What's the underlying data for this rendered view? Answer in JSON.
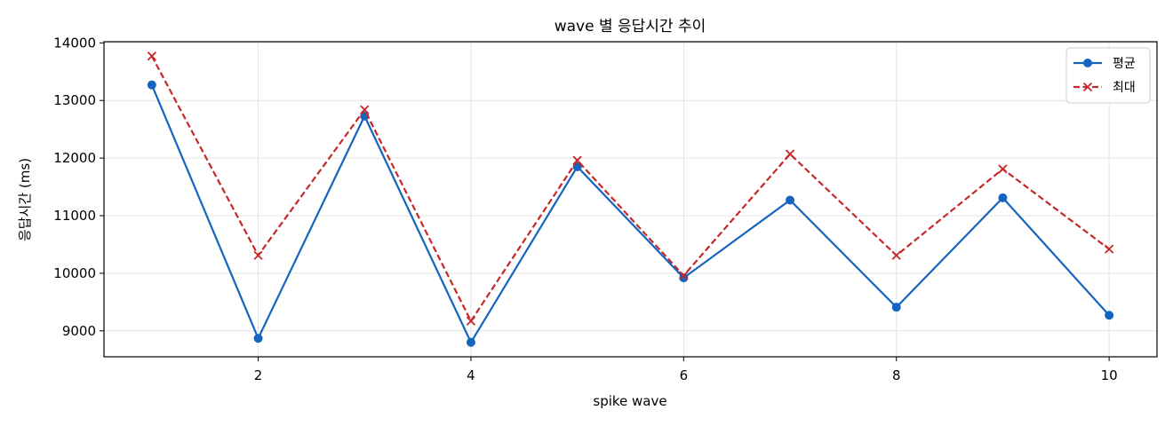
{
  "chart_data": {
    "type": "line",
    "title": "wave 별 응답시간 추이",
    "xlabel": "spike wave",
    "ylabel": "응답시간 (ms)",
    "x": [
      1,
      2,
      3,
      4,
      5,
      6,
      7,
      8,
      9,
      10
    ],
    "xlim": [
      0.55,
      10.45
    ],
    "ylim": [
      8550,
      14020
    ],
    "xticks": [
      2,
      4,
      6,
      8,
      10
    ],
    "yticks": [
      9000,
      10000,
      11000,
      12000,
      13000,
      14000
    ],
    "grid": true,
    "legend_position": "top-right",
    "series": [
      {
        "name": "평균",
        "color": "#1565c0",
        "line_style": "solid",
        "marker": "circle",
        "values": [
          13270,
          8870,
          12730,
          8800,
          11850,
          9920,
          11270,
          9410,
          11310,
          9270
        ]
      },
      {
        "name": "최대",
        "color": "#c62828",
        "line_style": "dashed",
        "marker": "x",
        "values": [
          13770,
          10310,
          12840,
          9170,
          11960,
          9960,
          12070,
          10310,
          11810,
          10420
        ]
      }
    ]
  }
}
